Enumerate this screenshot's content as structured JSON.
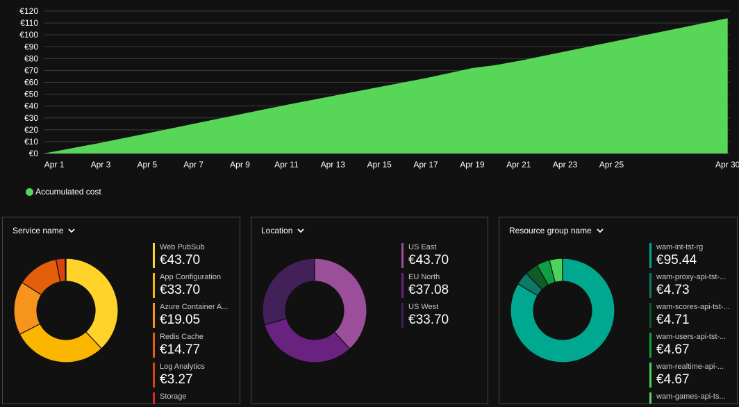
{
  "chart_data": {
    "type": "area",
    "title": "",
    "xlabel": "",
    "ylabel": "",
    "currency": "€",
    "ylim": [
      0,
      120
    ],
    "yticks": [
      0,
      10,
      20,
      30,
      40,
      50,
      60,
      70,
      80,
      90,
      100,
      110,
      120
    ],
    "ytick_labels": [
      "€0",
      "€10",
      "€20",
      "€30",
      "€40",
      "€50",
      "€60",
      "€70",
      "€80",
      "€90",
      "€100",
      "€110",
      "€120"
    ],
    "xlim": [
      0.55,
      30.1
    ],
    "xtick_days": [
      1,
      3,
      5,
      7,
      9,
      11,
      13,
      15,
      17,
      19,
      21,
      23,
      25,
      30
    ],
    "xtick_labels": [
      "Apr 1",
      "Apr 3",
      "Apr 5",
      "Apr 7",
      "Apr 9",
      "Apr 11",
      "Apr 13",
      "Apr 15",
      "Apr 17",
      "Apr 19",
      "Apr 21",
      "Apr 23",
      "Apr 25",
      "Apr 30"
    ],
    "grid": true,
    "series": [
      {
        "name": "Accumulated cost",
        "color": "#57d657",
        "x": [
          0.55,
          3,
          5,
          7,
          9,
          11,
          13,
          15,
          17,
          19,
          20,
          21,
          23,
          25,
          30
        ],
        "values": [
          0,
          9,
          17,
          25,
          33,
          41,
          48.5,
          56,
          63.5,
          72,
          74.5,
          78,
          86,
          94,
          114
        ]
      }
    ]
  },
  "legend": {
    "label": "Accumulated cost",
    "color": "#57d657"
  },
  "panels": [
    {
      "title": "Service name",
      "items": [
        {
          "label": "Web PubSub",
          "value": "€43.70",
          "amount": 43.7,
          "color": "#ffd32a"
        },
        {
          "label": "App Configuration",
          "value": "€33.70",
          "amount": 33.7,
          "color": "#fbb700"
        },
        {
          "label": "Azure Container A...",
          "value": "€19.05",
          "amount": 19.05,
          "color": "#f7941d"
        },
        {
          "label": "Redis Cache",
          "value": "€14.77",
          "amount": 14.77,
          "color": "#e35f0b"
        },
        {
          "label": "Log Analytics",
          "value": "€3.27",
          "amount": 3.27,
          "color": "#d9440e"
        },
        {
          "label": "Storage",
          "value": "",
          "amount": 0.3,
          "color": "#e3242b"
        }
      ]
    },
    {
      "title": "Location",
      "items": [
        {
          "label": "US East",
          "value": "€43.70",
          "amount": 43.7,
          "color": "#9b4f9a"
        },
        {
          "label": "EU North",
          "value": "€37.08",
          "amount": 37.08,
          "color": "#6a2280"
        },
        {
          "label": "US West",
          "value": "€33.70",
          "amount": 33.7,
          "color": "#422058"
        }
      ]
    },
    {
      "title": "Resource group name",
      "items": [
        {
          "label": "wam-int-tst-rg",
          "value": "€95.44",
          "amount": 95.44,
          "color": "#00a88f"
        },
        {
          "label": "wam-proxy-api-tst-...",
          "value": "€4.73",
          "amount": 4.73,
          "color": "#0b7868"
        },
        {
          "label": "wam-scores-api-tst-...",
          "value": "€4.71",
          "amount": 4.71,
          "color": "#0d5c2a"
        },
        {
          "label": "wam-users-api-tst-...",
          "value": "€4.67",
          "amount": 4.67,
          "color": "#109f42"
        },
        {
          "label": "wam-realtime-api-...",
          "value": "€4.67",
          "amount": 4.67,
          "color": "#4cd35a"
        },
        {
          "label": "wam-games-api-ts...",
          "value": "",
          "amount": 0.01,
          "color": "#5fd35f"
        }
      ]
    }
  ],
  "icons": {
    "dropdown": "chevron-down-icon"
  }
}
